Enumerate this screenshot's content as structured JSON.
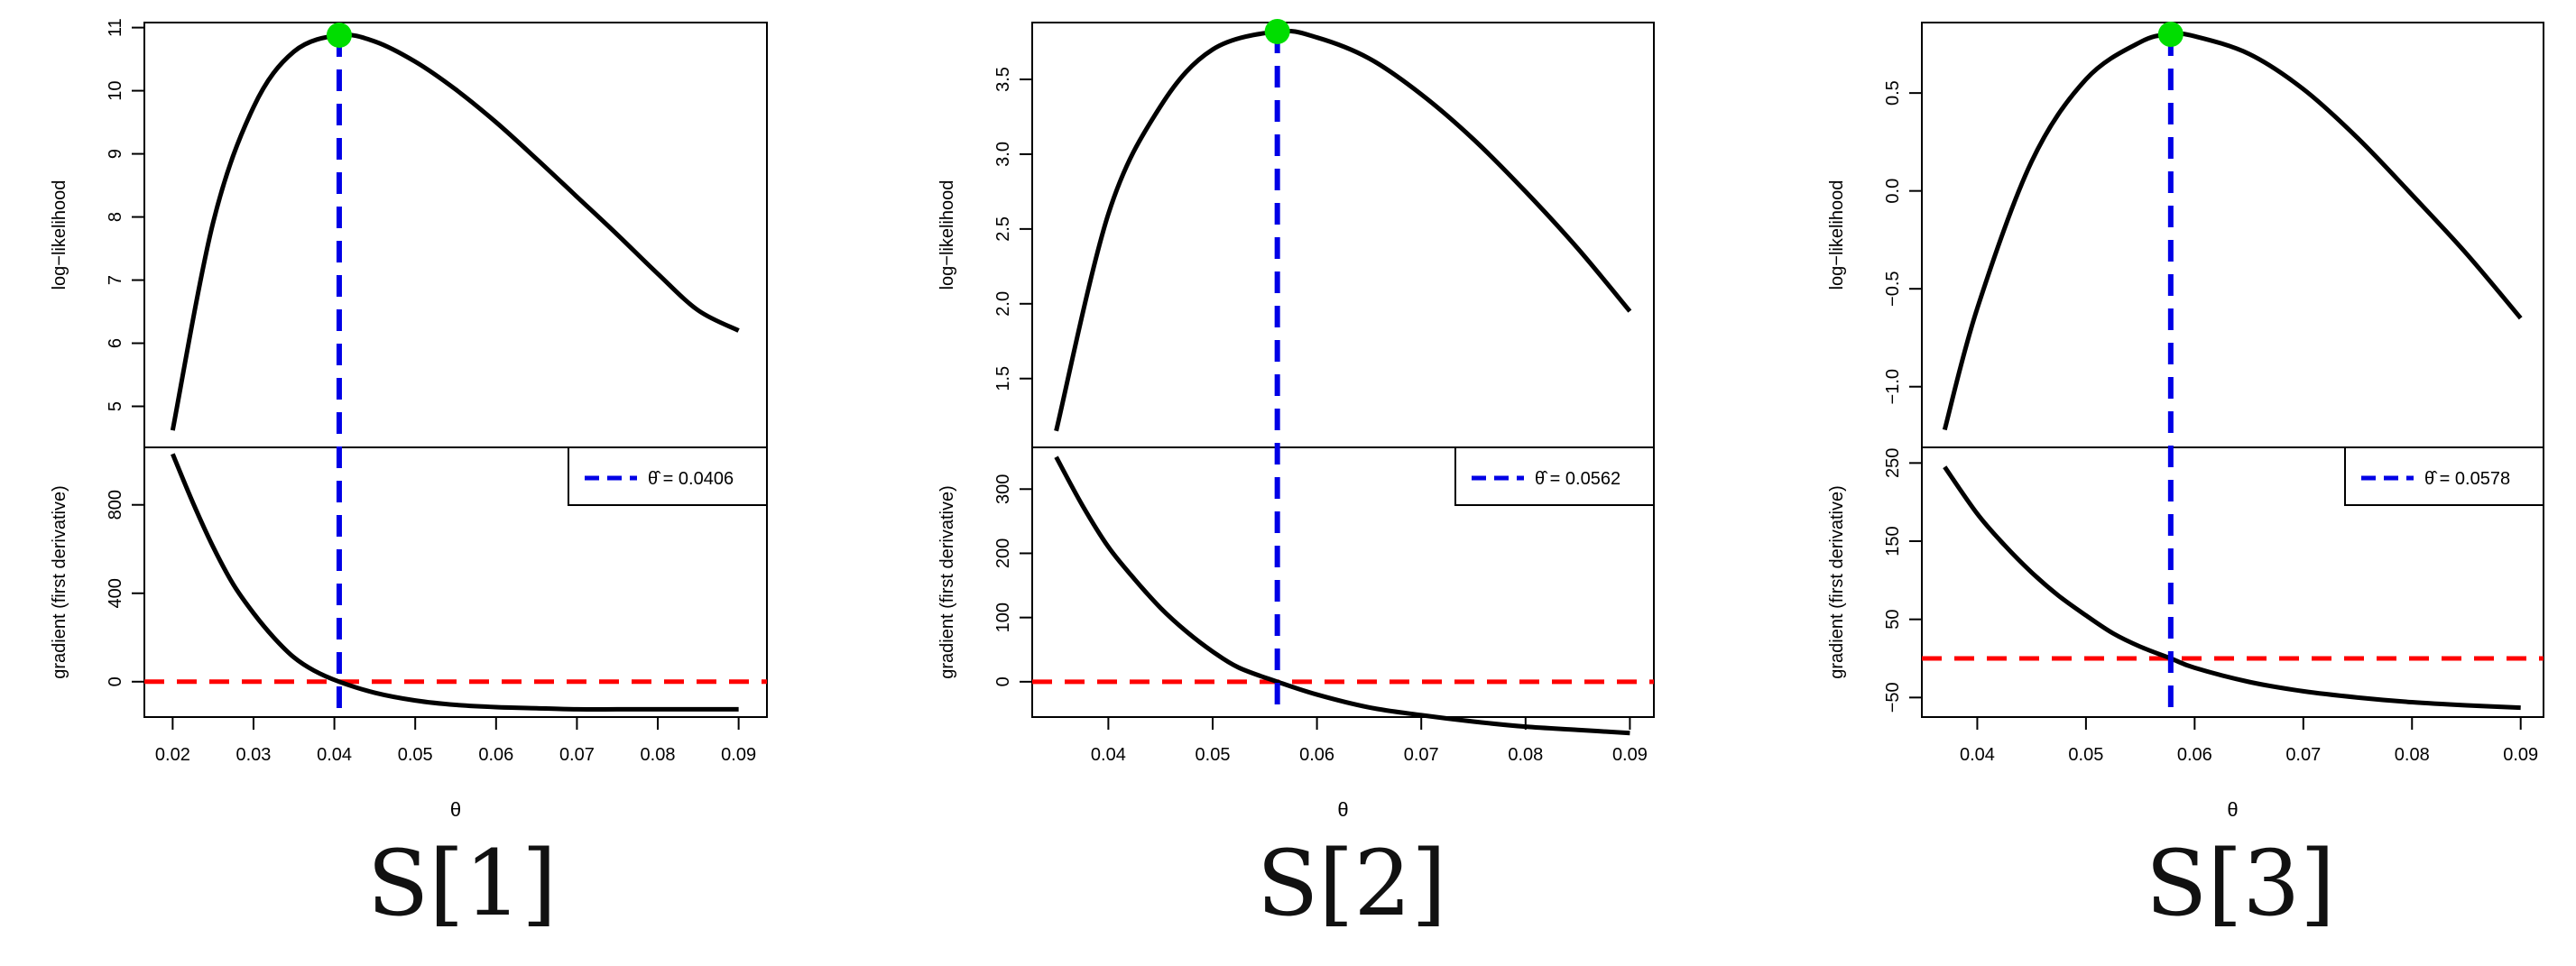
{
  "chart_data": [
    {
      "type": "line",
      "caption": "S[1]",
      "xlabel": "θ",
      "xticks": [
        0.02,
        0.03,
        0.04,
        0.05,
        0.06,
        0.07,
        0.08,
        0.09
      ],
      "xlim": [
        0.0165,
        0.0935
      ],
      "legend": {
        "label": "θ̂ = 0.0406",
        "position": "top-right"
      },
      "theta_hat": 0.0406,
      "top": {
        "ylabel": "log−likelihood",
        "yticks": [
          5,
          6,
          7,
          8,
          9,
          10,
          11
        ],
        "ylim": [
          4.35,
          11.08
        ],
        "x": [
          0.02,
          0.025,
          0.03,
          0.035,
          0.0406,
          0.045,
          0.05,
          0.055,
          0.06,
          0.065,
          0.07,
          0.075,
          0.08,
          0.085,
          0.09
        ],
        "y": [
          4.62,
          7.91,
          9.74,
          10.62,
          10.88,
          10.78,
          10.46,
          10.02,
          9.5,
          8.92,
          8.32,
          7.72,
          7.1,
          6.52,
          6.2
        ],
        "max_point": {
          "x": 0.0406,
          "y": 10.88
        }
      },
      "bottom": {
        "ylabel": "gradient (first derivative)",
        "yticks": [
          0,
          400,
          800
        ],
        "ylim": [
          -160,
          1060
        ],
        "x": [
          0.02,
          0.0225,
          0.025,
          0.0275,
          0.03,
          0.0325,
          0.035,
          0.0375,
          0.0406,
          0.045,
          0.05,
          0.055,
          0.06,
          0.065,
          0.07,
          0.075,
          0.08,
          0.085,
          0.09
        ],
        "y": [
          1030,
          810,
          610,
          440,
          310,
          200,
          110,
          50,
          0,
          -50,
          -85,
          -105,
          -115,
          -120,
          -125,
          -125,
          -125,
          -125,
          -125
        ],
        "zero_line": 0
      }
    },
    {
      "type": "line",
      "caption": "S[2]",
      "xlabel": "θ",
      "xticks": [
        0.04,
        0.05,
        0.06,
        0.07,
        0.08,
        0.09
      ],
      "xlim": [
        0.0327,
        0.0923
      ],
      "legend": {
        "label": "θ̂ = 0.0562",
        "position": "top-right"
      },
      "theta_hat": 0.0562,
      "top": {
        "ylabel": "log−likelihood",
        "yticks": [
          1.5,
          2.0,
          2.5,
          3.0,
          3.5
        ],
        "ylim": [
          1.04,
          3.88
        ],
        "x": [
          0.035,
          0.04,
          0.045,
          0.05,
          0.0562,
          0.06,
          0.065,
          0.07,
          0.075,
          0.08,
          0.085,
          0.09
        ],
        "y": [
          1.15,
          2.6,
          3.32,
          3.7,
          3.82,
          3.78,
          3.64,
          3.4,
          3.1,
          2.75,
          2.37,
          1.95
        ],
        "max_point": {
          "x": 0.0562,
          "y": 3.82
        }
      },
      "bottom": {
        "ylabel": "gradient (first derivative)",
        "yticks": [
          0,
          100,
          200,
          300
        ],
        "ylim": [
          -55,
          365
        ],
        "x": [
          0.035,
          0.0375,
          0.04,
          0.0425,
          0.045,
          0.0475,
          0.05,
          0.0525,
          0.0562,
          0.06,
          0.065,
          0.07,
          0.075,
          0.08,
          0.085,
          0.09
        ],
        "y": [
          350,
          275,
          210,
          160,
          115,
          78,
          47,
          22,
          0,
          -20,
          -40,
          -52,
          -62,
          -70,
          -75,
          -80
        ],
        "zero_line": 0
      }
    },
    {
      "type": "line",
      "caption": "S[3]",
      "xlabel": "θ",
      "xticks": [
        0.04,
        0.05,
        0.06,
        0.07,
        0.08,
        0.09
      ],
      "xlim": [
        0.0349,
        0.0921
      ],
      "legend": {
        "label": "θ̂ = 0.0578",
        "position": "top-right"
      },
      "theta_hat": 0.0578,
      "top": {
        "ylabel": "log−likelihood",
        "yticks": [
          -1.0,
          -0.5,
          0.0,
          0.5
        ],
        "ylim": [
          -1.31,
          0.86
        ],
        "x": [
          0.037,
          0.04,
          0.045,
          0.05,
          0.055,
          0.0578,
          0.06,
          0.065,
          0.07,
          0.075,
          0.08,
          0.085,
          0.09
        ],
        "y": [
          -1.22,
          -0.6,
          0.15,
          0.57,
          0.76,
          0.8,
          0.79,
          0.7,
          0.52,
          0.27,
          -0.02,
          -0.32,
          -0.65
        ],
        "max_point": {
          "x": 0.0578,
          "y": 0.8
        }
      },
      "bottom": {
        "ylabel": "gradient (first derivative)",
        "yticks": [
          -50,
          50,
          150,
          250
        ],
        "ylim": [
          -75,
          270
        ],
        "x": [
          0.037,
          0.04,
          0.0425,
          0.045,
          0.0475,
          0.05,
          0.0525,
          0.055,
          0.0578,
          0.06,
          0.065,
          0.07,
          0.075,
          0.08,
          0.085,
          0.09
        ],
        "y": [
          245,
          185,
          145,
          110,
          80,
          55,
          32,
          15,
          0,
          -12,
          -30,
          -42,
          -50,
          -56,
          -60,
          -63
        ],
        "zero_line": 0
      }
    }
  ]
}
